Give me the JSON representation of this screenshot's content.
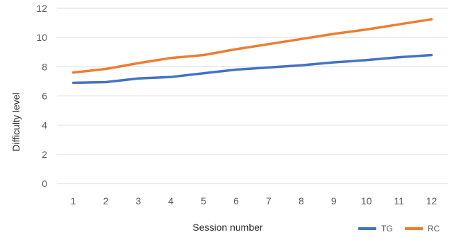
{
  "chart_data": {
    "type": "line",
    "title": "",
    "xlabel": "Session number",
    "ylabel": "Difficulty level",
    "categories": [
      "1",
      "2",
      "3",
      "4",
      "5",
      "6",
      "7",
      "8",
      "9",
      "10",
      "11",
      "12"
    ],
    "ylim": [
      0,
      12
    ],
    "yticks": [
      0,
      2,
      4,
      6,
      8,
      10,
      12
    ],
    "grid": true,
    "legend_position": "bottom-right",
    "series": [
      {
        "name": "TG",
        "color": "#4472C4",
        "values": [
          6.9,
          6.95,
          7.2,
          7.3,
          7.55,
          7.8,
          7.95,
          8.1,
          8.3,
          8.45,
          8.65,
          8.8
        ]
      },
      {
        "name": "RC",
        "color": "#ED7D31",
        "values": [
          7.6,
          7.85,
          8.25,
          8.6,
          8.8,
          9.2,
          9.55,
          9.9,
          10.25,
          10.55,
          10.9,
          11.25
        ]
      }
    ]
  }
}
